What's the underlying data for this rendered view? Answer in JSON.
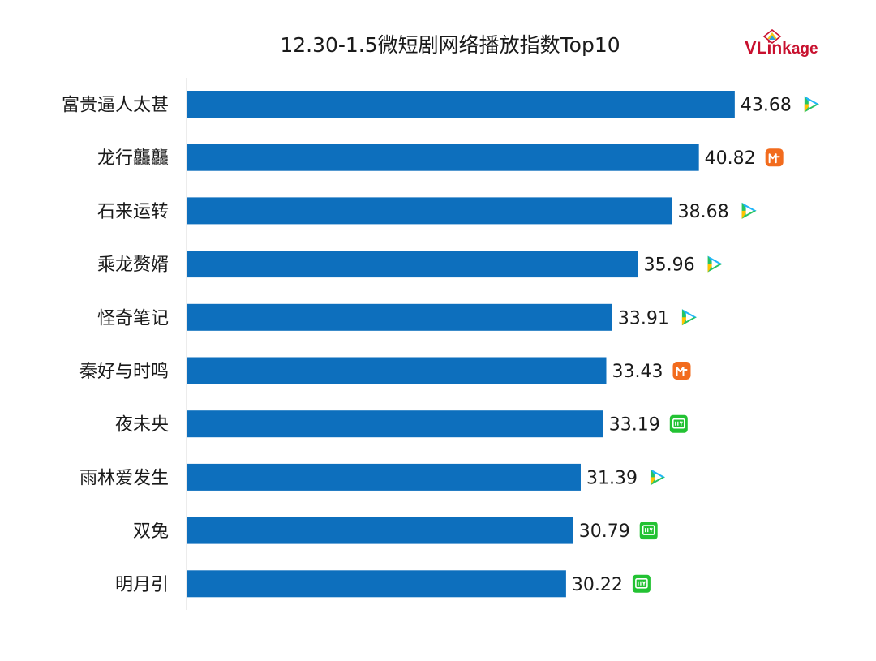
{
  "chart_data": {
    "type": "bar",
    "orientation": "horizontal",
    "title": "12.30-1.5微短剧网络播放指数Top10",
    "categories": [
      "富贵逼人太甚",
      "龙行龘龘",
      "石来运转",
      "乘龙赘婿",
      "怪奇笔记",
      "秦好与时鸣",
      "夜未央",
      "雨林爱发生",
      "双兔",
      "明月引"
    ],
    "values": [
      43.68,
      40.82,
      38.68,
      35.96,
      33.91,
      33.43,
      33.19,
      31.39,
      30.79,
      30.22
    ],
    "value_labels": [
      "43.68",
      "40.82",
      "38.68",
      "35.96",
      "33.91",
      "33.43",
      "33.19",
      "31.39",
      "30.79",
      "30.22"
    ],
    "platform_icons": [
      "tencent-video-icon",
      "mango-tv-icon",
      "tencent-video-icon",
      "tencent-video-icon",
      "tencent-video-icon",
      "mango-tv-icon",
      "iqiyi-icon",
      "tencent-video-icon",
      "iqiyi-icon",
      "iqiyi-icon"
    ],
    "xlim": [
      0,
      45
    ],
    "grid": false,
    "bar_color": "#0d6fbd",
    "colors": {
      "tencent-video-icon": [
        "#1fb5ff",
        "#ffc400",
        "#27c463"
      ],
      "mango-tv-icon": "#f26b1d",
      "iqiyi-icon": "#23c233"
    }
  },
  "logo": {
    "text_v": "V",
    "text_rest": "Linkage",
    "color": "#c8102e"
  }
}
